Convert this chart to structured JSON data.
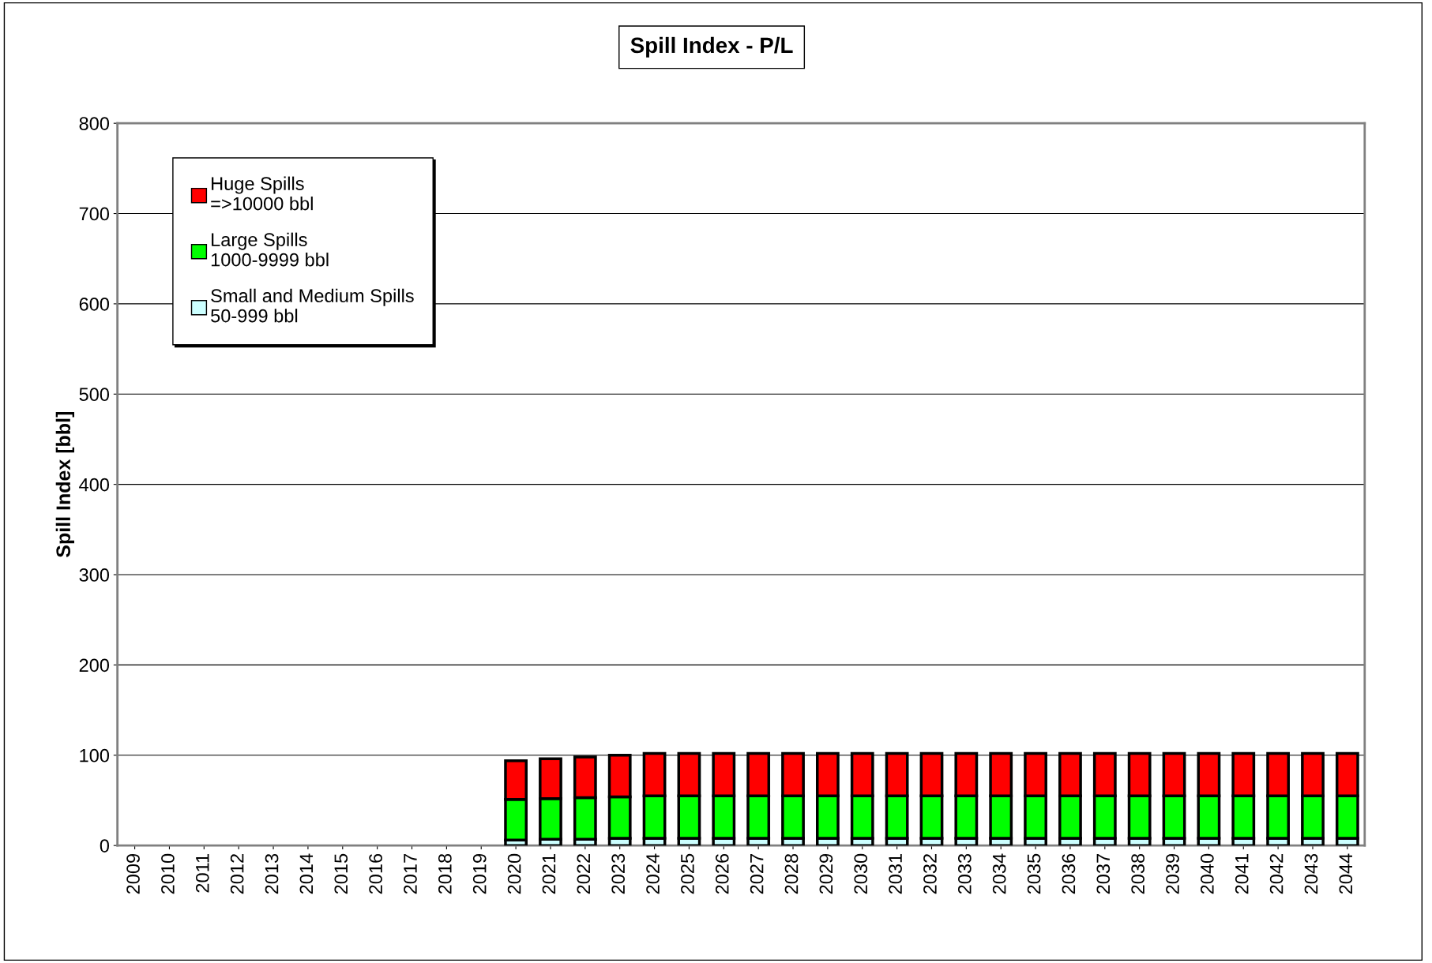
{
  "chart_data": {
    "type": "bar",
    "title": "Spill Index - P/L",
    "ylabel": "Spill Index [bbl]",
    "categories": [
      "2009",
      "2010",
      "2011",
      "2012",
      "2013",
      "2014",
      "2015",
      "2016",
      "2017",
      "2018",
      "2019",
      "2020",
      "2021",
      "2022",
      "2023",
      "2024",
      "2025",
      "2026",
      "2027",
      "2028",
      "2029",
      "2030",
      "2031",
      "2032",
      "2033",
      "2034",
      "2035",
      "2036",
      "2037",
      "2038",
      "2039",
      "2040",
      "2041",
      "2042",
      "2043",
      "2044"
    ],
    "stacked": true,
    "series": [
      {
        "name": "Small and Medium Spills\n50-999 bbl",
        "color": "#ccffff",
        "values": [
          null,
          null,
          null,
          null,
          null,
          null,
          null,
          null,
          null,
          null,
          null,
          6,
          7,
          7,
          8,
          8,
          8,
          8,
          8,
          8,
          8,
          8,
          8,
          8,
          8,
          8,
          8,
          8,
          8,
          8,
          8,
          8,
          8,
          8,
          8,
          8
        ]
      },
      {
        "name": "Large Spills\n1000-9999 bbl",
        "color": "#00ff00",
        "values": [
          null,
          null,
          null,
          null,
          null,
          null,
          null,
          null,
          null,
          null,
          null,
          45,
          45,
          46,
          46,
          47,
          47,
          47,
          47,
          47,
          47,
          47,
          47,
          47,
          47,
          47,
          47,
          47,
          47,
          47,
          47,
          47,
          47,
          47,
          47,
          47
        ]
      },
      {
        "name": "Huge Spills\n=>10000 bbl",
        "color": "#ff0000",
        "values": [
          null,
          null,
          null,
          null,
          null,
          null,
          null,
          null,
          null,
          null,
          null,
          43,
          44,
          45,
          46,
          47,
          47,
          47,
          47,
          47,
          47,
          47,
          47,
          47,
          47,
          47,
          47,
          47,
          47,
          47,
          47,
          47,
          47,
          47,
          47,
          47
        ]
      }
    ],
    "ylim": [
      0,
      800
    ],
    "yticks": [
      0,
      100,
      200,
      300,
      400,
      500,
      600,
      700,
      800
    ],
    "grid": "y",
    "legend": "top left"
  }
}
